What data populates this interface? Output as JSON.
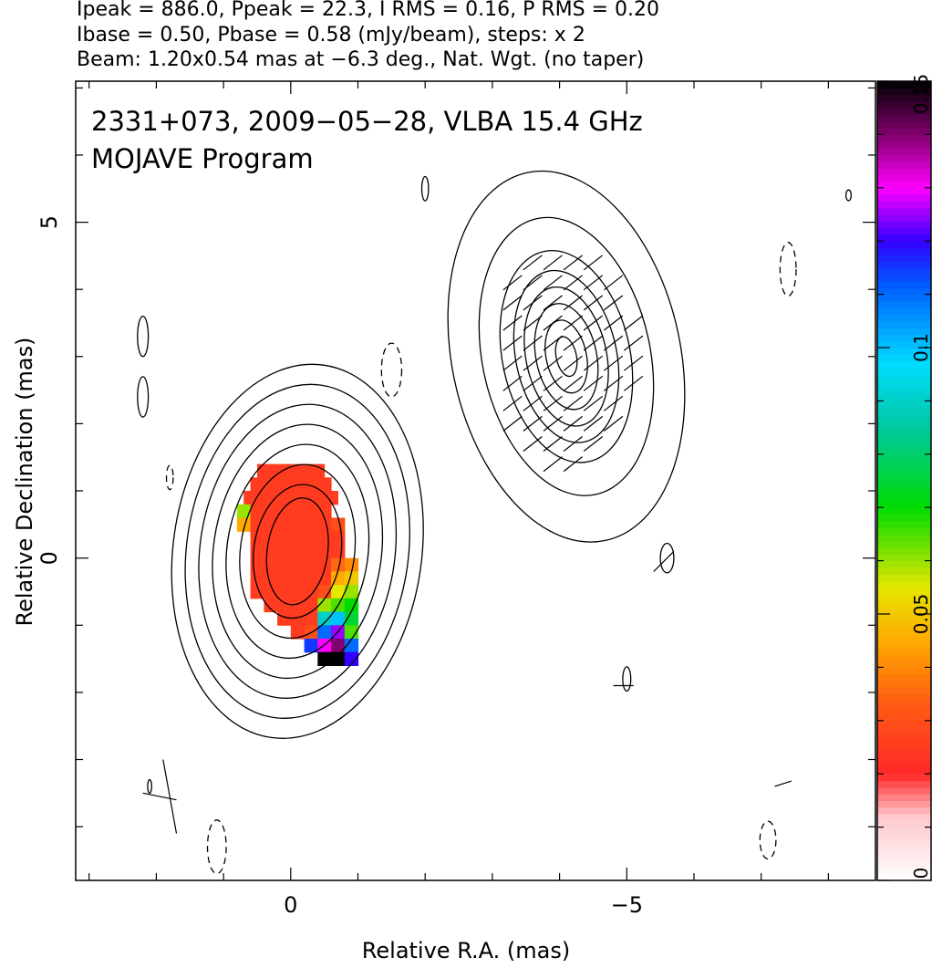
{
  "header": {
    "line1": "Ipeak = 886.0, Ppeak = 22.3, I RMS = 0.16, P RMS = 0.20",
    "line2": "Ibase = 0.50, Pbase = 0.58 (mJy/beam), steps: x 2",
    "line3": "Beam: 1.20x0.54 mas at −6.3 deg., Nat. Wgt. (no taper)"
  },
  "chart_data": {
    "type": "heatmap",
    "title": "2331+073, 2009−05−28, VLBA 15.4 GHz",
    "subtitle": "MOJAVE Program",
    "xlabel": "Relative R.A. (mas)",
    "ylabel": "Relative Declination (mas)",
    "xlim": [
      3.2,
      -8.7
    ],
    "ylim": [
      -4.8,
      7.1
    ],
    "x_ticks": [
      {
        "value": 0,
        "label": "0"
      },
      {
        "value": -5,
        "label": "−5"
      }
    ],
    "y_ticks": [
      {
        "value": 0,
        "label": "0"
      },
      {
        "value": 5,
        "label": "5"
      }
    ],
    "colorbar": {
      "range": [
        0,
        0.15
      ],
      "ticks": [
        {
          "value": 0,
          "label": "0"
        },
        {
          "value": 0.05,
          "label": "0.05"
        },
        {
          "value": 0.1,
          "label": "0.1"
        },
        {
          "value": 0.15,
          "label": "0.15"
        }
      ]
    },
    "sources": [
      {
        "name": "core",
        "x": -0.1,
        "y": 0.1,
        "contours": [
          [
            0.45,
            0.8
          ],
          [
            0.65,
            1.0
          ],
          [
            0.85,
            1.3
          ],
          [
            1.05,
            1.6
          ],
          [
            1.25,
            1.9
          ],
          [
            1.45,
            2.2
          ],
          [
            1.65,
            2.5
          ],
          [
            1.85,
            2.8
          ]
        ]
      },
      {
        "name": "jet",
        "x": -4.1,
        "y": 3.0,
        "contours": [
          [
            0.15,
            0.3
          ],
          [
            0.3,
            0.55
          ],
          [
            0.45,
            0.8
          ],
          [
            0.6,
            1.05
          ],
          [
            0.75,
            1.3
          ],
          [
            0.95,
            1.6
          ],
          [
            1.25,
            2.1
          ],
          [
            1.7,
            2.8
          ]
        ]
      }
    ],
    "fractional_polarization_pixels": [
      {
        "x": 0.4,
        "y": 1.3,
        "value": 0.025
      },
      {
        "x": 0.2,
        "y": 1.3,
        "value": 0.025
      },
      {
        "x": 0.0,
        "y": 1.3,
        "value": 0.025
      },
      {
        "x": -0.2,
        "y": 1.3,
        "value": 0.025
      },
      {
        "x": -0.4,
        "y": 1.3,
        "value": 0.025
      },
      {
        "x": 0.5,
        "y": 1.1,
        "value": 0.025
      },
      {
        "x": 0.3,
        "y": 1.1,
        "value": 0.025
      },
      {
        "x": 0.1,
        "y": 1.1,
        "value": 0.025
      },
      {
        "x": -0.1,
        "y": 1.1,
        "value": 0.025
      },
      {
        "x": -0.3,
        "y": 1.1,
        "value": 0.025
      },
      {
        "x": -0.5,
        "y": 1.1,
        "value": 0.025
      },
      {
        "x": 0.6,
        "y": 0.9,
        "value": 0.025
      },
      {
        "x": 0.4,
        "y": 0.9,
        "value": 0.025
      },
      {
        "x": 0.2,
        "y": 0.9,
        "value": 0.025
      },
      {
        "x": 0.0,
        "y": 0.9,
        "value": 0.025
      },
      {
        "x": -0.2,
        "y": 0.9,
        "value": 0.025
      },
      {
        "x": -0.4,
        "y": 0.9,
        "value": 0.025
      },
      {
        "x": -0.6,
        "y": 0.9,
        "value": 0.025
      },
      {
        "x": 0.7,
        "y": 0.7,
        "value": 0.06
      },
      {
        "x": 0.5,
        "y": 0.7,
        "value": 0.025
      },
      {
        "x": 0.3,
        "y": 0.7,
        "value": 0.025
      },
      {
        "x": 0.1,
        "y": 0.7,
        "value": 0.025
      },
      {
        "x": -0.1,
        "y": 0.7,
        "value": 0.025
      },
      {
        "x": -0.3,
        "y": 0.7,
        "value": 0.025
      },
      {
        "x": -0.5,
        "y": 0.7,
        "value": 0.025
      },
      {
        "x": 0.7,
        "y": 0.5,
        "value": 0.045
      },
      {
        "x": 0.5,
        "y": 0.5,
        "value": 0.025
      },
      {
        "x": 0.3,
        "y": 0.5,
        "value": 0.025
      },
      {
        "x": 0.1,
        "y": 0.5,
        "value": 0.025
      },
      {
        "x": -0.1,
        "y": 0.5,
        "value": 0.025
      },
      {
        "x": -0.3,
        "y": 0.5,
        "value": 0.025
      },
      {
        "x": -0.5,
        "y": 0.5,
        "value": 0.025
      },
      {
        "x": -0.7,
        "y": 0.5,
        "value": 0.03
      },
      {
        "x": 0.5,
        "y": 0.3,
        "value": 0.025
      },
      {
        "x": 0.3,
        "y": 0.3,
        "value": 0.025
      },
      {
        "x": 0.1,
        "y": 0.3,
        "value": 0.025
      },
      {
        "x": -0.1,
        "y": 0.3,
        "value": 0.025
      },
      {
        "x": -0.3,
        "y": 0.3,
        "value": 0.025
      },
      {
        "x": -0.5,
        "y": 0.3,
        "value": 0.025
      },
      {
        "x": -0.7,
        "y": 0.3,
        "value": 0.025
      },
      {
        "x": 0.5,
        "y": 0.1,
        "value": 0.025
      },
      {
        "x": 0.3,
        "y": 0.1,
        "value": 0.025
      },
      {
        "x": 0.1,
        "y": 0.1,
        "value": 0.025
      },
      {
        "x": -0.1,
        "y": 0.1,
        "value": 0.025
      },
      {
        "x": -0.3,
        "y": 0.1,
        "value": 0.025
      },
      {
        "x": -0.5,
        "y": 0.1,
        "value": 0.025
      },
      {
        "x": -0.7,
        "y": 0.1,
        "value": 0.025
      },
      {
        "x": 0.5,
        "y": -0.1,
        "value": 0.025
      },
      {
        "x": 0.3,
        "y": -0.1,
        "value": 0.025
      },
      {
        "x": 0.1,
        "y": -0.1,
        "value": 0.025
      },
      {
        "x": -0.1,
        "y": -0.1,
        "value": 0.025
      },
      {
        "x": -0.3,
        "y": -0.1,
        "value": 0.025
      },
      {
        "x": -0.5,
        "y": -0.1,
        "value": 0.025
      },
      {
        "x": -0.7,
        "y": -0.1,
        "value": 0.035
      },
      {
        "x": -0.9,
        "y": -0.1,
        "value": 0.04
      },
      {
        "x": 0.5,
        "y": -0.3,
        "value": 0.025
      },
      {
        "x": 0.3,
        "y": -0.3,
        "value": 0.025
      },
      {
        "x": 0.1,
        "y": -0.3,
        "value": 0.025
      },
      {
        "x": -0.1,
        "y": -0.3,
        "value": 0.025
      },
      {
        "x": -0.3,
        "y": -0.3,
        "value": 0.025
      },
      {
        "x": -0.5,
        "y": -0.3,
        "value": 0.025
      },
      {
        "x": -0.7,
        "y": -0.3,
        "value": 0.045
      },
      {
        "x": -0.9,
        "y": -0.3,
        "value": 0.05
      },
      {
        "x": 0.5,
        "y": -0.5,
        "value": 0.025
      },
      {
        "x": 0.3,
        "y": -0.5,
        "value": 0.025
      },
      {
        "x": 0.1,
        "y": -0.5,
        "value": 0.025
      },
      {
        "x": -0.1,
        "y": -0.5,
        "value": 0.025
      },
      {
        "x": -0.3,
        "y": -0.5,
        "value": 0.025
      },
      {
        "x": -0.5,
        "y": -0.5,
        "value": 0.03
      },
      {
        "x": -0.7,
        "y": -0.5,
        "value": 0.055
      },
      {
        "x": -0.9,
        "y": -0.5,
        "value": 0.06
      },
      {
        "x": 0.3,
        "y": -0.7,
        "value": 0.025
      },
      {
        "x": 0.1,
        "y": -0.7,
        "value": 0.025
      },
      {
        "x": -0.1,
        "y": -0.7,
        "value": 0.025
      },
      {
        "x": -0.3,
        "y": -0.7,
        "value": 0.025
      },
      {
        "x": -0.5,
        "y": -0.7,
        "value": 0.06
      },
      {
        "x": -0.7,
        "y": -0.7,
        "value": 0.065
      },
      {
        "x": -0.9,
        "y": -0.7,
        "value": 0.07
      },
      {
        "x": 0.1,
        "y": -0.9,
        "value": 0.025
      },
      {
        "x": -0.1,
        "y": -0.9,
        "value": 0.025
      },
      {
        "x": -0.3,
        "y": -0.9,
        "value": 0.025
      },
      {
        "x": -0.5,
        "y": -0.9,
        "value": 0.09
      },
      {
        "x": -0.7,
        "y": -0.9,
        "value": 0.1
      },
      {
        "x": -0.9,
        "y": -0.9,
        "value": 0.075
      },
      {
        "x": -0.1,
        "y": -1.1,
        "value": 0.025
      },
      {
        "x": -0.3,
        "y": -1.1,
        "value": 0.03
      },
      {
        "x": -0.5,
        "y": -1.1,
        "value": 0.11
      },
      {
        "x": -0.7,
        "y": -1.1,
        "value": 0.125
      },
      {
        "x": -0.9,
        "y": -1.1,
        "value": 0.065
      },
      {
        "x": -0.3,
        "y": -1.3,
        "value": 0.115
      },
      {
        "x": -0.5,
        "y": -1.3,
        "value": 0.13
      },
      {
        "x": -0.7,
        "y": -1.3,
        "value": 0.14
      },
      {
        "x": -0.9,
        "y": -1.3,
        "value": 0.11
      },
      {
        "x": -0.5,
        "y": -1.5,
        "value": 0.15
      },
      {
        "x": -0.7,
        "y": -1.5,
        "value": 0.15
      },
      {
        "x": -0.9,
        "y": -1.5,
        "value": 0.12
      }
    ]
  }
}
